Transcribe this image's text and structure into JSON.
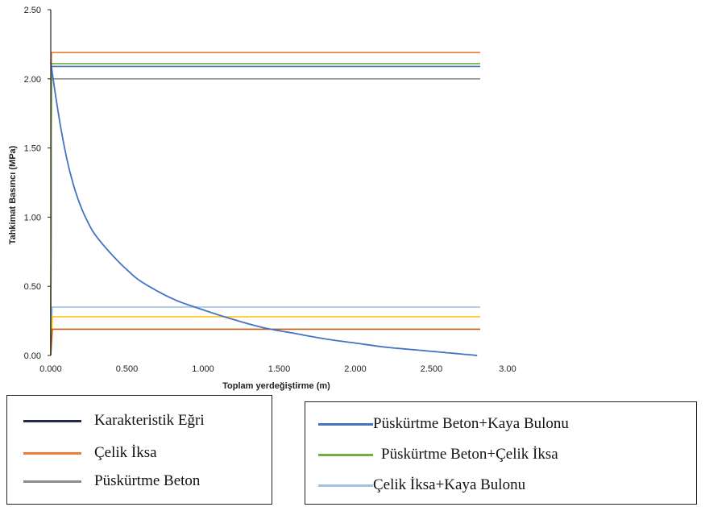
{
  "chart_data": {
    "type": "line",
    "xlabel": "Toplam yerdeğiştirme (m)",
    "ylabel": "Tahkimat Basıncı (MPa)",
    "xlim": [
      0,
      3.0
    ],
    "ylim": [
      0,
      2.5
    ],
    "x_ticks": [
      "0.000",
      "0.500",
      "1.000",
      "1.500",
      "2.000",
      "2.500",
      "3.00"
    ],
    "y_ticks": [
      "0.00",
      "0.50",
      "1.00",
      "1.50",
      "2.00",
      "2.50"
    ],
    "grid": false,
    "series": [
      {
        "name": "Karakteristik Eğri",
        "color": "#4472c4",
        "x": [
          0.0,
          0.05,
          0.1,
          0.15,
          0.2,
          0.25,
          0.3,
          0.4,
          0.5,
          0.6,
          0.8,
          1.0,
          1.2,
          1.4,
          1.6,
          1.8,
          2.0,
          2.2,
          2.4,
          2.6,
          2.8
        ],
        "y": [
          2.12,
          1.75,
          1.45,
          1.23,
          1.07,
          0.95,
          0.86,
          0.73,
          0.62,
          0.53,
          0.41,
          0.33,
          0.26,
          0.2,
          0.16,
          0.12,
          0.09,
          0.06,
          0.04,
          0.02,
          0.0
        ]
      },
      {
        "name": "Çelik İksa",
        "color": "#ed7d31",
        "x": [
          0.0,
          0.005,
          0.02,
          2.82
        ],
        "y": [
          0.0,
          2.19,
          2.19,
          2.19
        ]
      },
      {
        "name": "Püskürtme Beton",
        "color": "#8c8c8c",
        "x": [
          0.0,
          0.005,
          0.02,
          2.82
        ],
        "y": [
          0.0,
          2.0,
          2.0,
          2.0
        ]
      },
      {
        "name": "Püskürtme Beton+Kaya Bulonu",
        "color": "#4472c4",
        "x": [
          0.0,
          0.005,
          0.02,
          2.82
        ],
        "y": [
          0.0,
          2.09,
          2.09,
          2.09
        ]
      },
      {
        "name": "Püskürtme Beton+Çelik İksa",
        "color": "#70ad47",
        "x": [
          0.0,
          0.005,
          0.02,
          2.82
        ],
        "y": [
          0.0,
          2.11,
          2.11,
          2.11
        ]
      },
      {
        "name": "Çelik İksa+Kaya Bulonu",
        "color": "#9dc3e6",
        "x": [
          0.0,
          0.01,
          0.02,
          2.82
        ],
        "y": [
          0.0,
          0.35,
          0.35,
          0.35
        ]
      },
      {
        "name": "",
        "color": "#ffc000",
        "x": [
          0.0,
          0.01,
          0.02,
          2.82
        ],
        "y": [
          0.0,
          0.28,
          0.28,
          0.28
        ]
      },
      {
        "name": "",
        "color": "#c55a11",
        "x": [
          0.0,
          0.01,
          0.02,
          2.82
        ],
        "y": [
          0.0,
          0.19,
          0.19,
          0.19
        ]
      }
    ]
  },
  "legend_left": [
    {
      "label": "Karakteristik Eğri",
      "color": "#1f2a4d"
    },
    {
      "label": "Çelik İksa",
      "color": "#ed7d31"
    },
    {
      "label": "Püskürtme Beton",
      "color": "#8c8c8c"
    }
  ],
  "legend_right": [
    {
      "label": "Püskürtme Beton+Kaya Bulonu",
      "color": "#4472c4"
    },
    {
      "label": "Püskürtme Beton+Çelik İksa",
      "color": "#70ad47"
    },
    {
      "label": "Çelik İksa+Kaya Bulonu",
      "color": "#9dc3e6"
    }
  ]
}
